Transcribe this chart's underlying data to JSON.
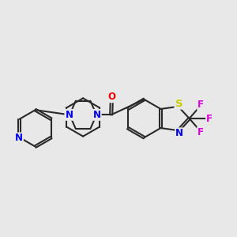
{
  "background_color": "#e8e8e8",
  "bond_color": "#2a2a2a",
  "bond_width": 1.5,
  "atom_colors": {
    "N": "#0000ee",
    "O": "#ee0000",
    "S": "#cccc00",
    "F": "#dd00dd",
    "C": "#2a2a2a"
  },
  "font_size": 8.5
}
